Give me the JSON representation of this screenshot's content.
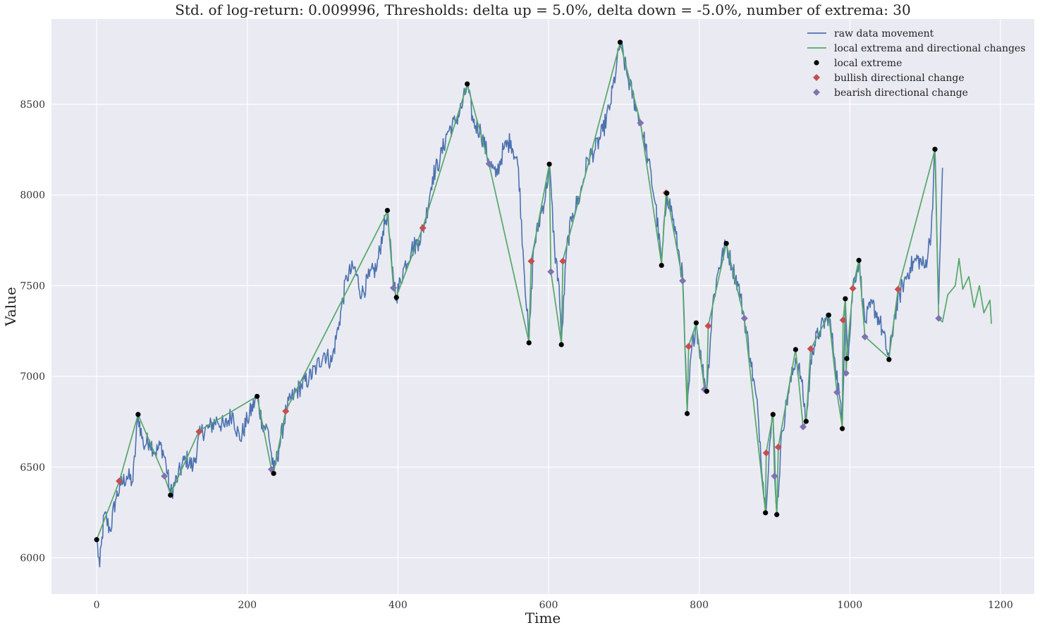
{
  "chart_data": {
    "type": "line",
    "title": "Std. of log-return: 0.009996, Thresholds: delta up = 5.0%, delta down = -5.0%, number of extrema: 30",
    "xlabel": "Time",
    "ylabel": "Value",
    "xlim": [
      -60,
      1245
    ],
    "ylim": [
      5800,
      8970
    ],
    "x_ticks": [
      0,
      200,
      400,
      600,
      800,
      1000,
      1200
    ],
    "y_ticks": [
      6000,
      6500,
      7000,
      7500,
      8000,
      8500
    ],
    "x_tick_labels": [
      "0",
      "200",
      "400",
      "600",
      "800",
      "1000",
      "1200"
    ],
    "y_tick_labels": [
      "6000",
      "6500",
      "7000",
      "7500",
      "8000",
      "8500"
    ],
    "grid": true,
    "background": "#eaeaf2",
    "legend_position": "top-right",
    "legend": [
      {
        "label": "raw data movement",
        "kind": "line",
        "color": "#4c72b0"
      },
      {
        "label": "local extrema and directional changes",
        "kind": "line",
        "color": "#55a868"
      },
      {
        "label": "local extreme",
        "kind": "dot",
        "color": "#000000"
      },
      {
        "label": "bullish directional change",
        "kind": "diamond",
        "color": "#c44e52"
      },
      {
        "label": "bearish directional change",
        "kind": "diamond",
        "color": "#8172b2"
      }
    ],
    "series": [
      {
        "name": "raw data movement",
        "color": "#4c72b0",
        "anchors": [
          [
            0,
            6100
          ],
          [
            4,
            5950
          ],
          [
            10,
            6240
          ],
          [
            18,
            6150
          ],
          [
            25,
            6320
          ],
          [
            32,
            6400
          ],
          [
            40,
            6450
          ],
          [
            48,
            6420
          ],
          [
            55,
            6790
          ],
          [
            62,
            6620
          ],
          [
            70,
            6650
          ],
          [
            78,
            6580
          ],
          [
            86,
            6620
          ],
          [
            92,
            6520
          ],
          [
            98,
            6350
          ],
          [
            108,
            6450
          ],
          [
            118,
            6550
          ],
          [
            128,
            6500
          ],
          [
            138,
            6690
          ],
          [
            150,
            6720
          ],
          [
            160,
            6760
          ],
          [
            170,
            6720
          ],
          [
            180,
            6800
          ],
          [
            190,
            6650
          ],
          [
            200,
            6760
          ],
          [
            213,
            6890
          ],
          [
            220,
            6740
          ],
          [
            228,
            6700
          ],
          [
            235,
            6470
          ],
          [
            242,
            6600
          ],
          [
            252,
            6820
          ],
          [
            262,
            6900
          ],
          [
            272,
            6950
          ],
          [
            282,
            6990
          ],
          [
            292,
            7050
          ],
          [
            302,
            7130
          ],
          [
            312,
            7080
          ],
          [
            322,
            7300
          ],
          [
            332,
            7550
          ],
          [
            342,
            7600
          ],
          [
            352,
            7450
          ],
          [
            362,
            7550
          ],
          [
            372,
            7600
          ],
          [
            380,
            7800
          ],
          [
            386,
            7900
          ],
          [
            392,
            7600
          ],
          [
            398,
            7440
          ],
          [
            408,
            7600
          ],
          [
            418,
            7700
          ],
          [
            428,
            7750
          ],
          [
            436,
            7850
          ],
          [
            446,
            8100
          ],
          [
            456,
            8200
          ],
          [
            466,
            8350
          ],
          [
            476,
            8400
          ],
          [
            486,
            8500
          ],
          [
            492,
            8610
          ],
          [
            500,
            8400
          ],
          [
            510,
            8350
          ],
          [
            520,
            8200
          ],
          [
            530,
            8100
          ],
          [
            540,
            8250
          ],
          [
            550,
            8300
          ],
          [
            560,
            8150
          ],
          [
            566,
            7700
          ],
          [
            574,
            7190
          ],
          [
            580,
            7700
          ],
          [
            590,
            7900
          ],
          [
            596,
            8000
          ],
          [
            601,
            8170
          ],
          [
            608,
            7700
          ],
          [
            614,
            7500
          ],
          [
            617,
            7180
          ],
          [
            624,
            7700
          ],
          [
            632,
            7900
          ],
          [
            642,
            8000
          ],
          [
            652,
            8200
          ],
          [
            662,
            8250
          ],
          [
            672,
            8350
          ],
          [
            682,
            8500
          ],
          [
            690,
            8700
          ],
          [
            695,
            8840
          ],
          [
            705,
            8650
          ],
          [
            715,
            8500
          ],
          [
            722,
            8400
          ],
          [
            732,
            8200
          ],
          [
            742,
            7950
          ],
          [
            750,
            7620
          ],
          [
            757,
            8010
          ],
          [
            764,
            7900
          ],
          [
            772,
            7700
          ],
          [
            778,
            7550
          ],
          [
            784,
            6800
          ],
          [
            790,
            7150
          ],
          [
            796,
            7290
          ],
          [
            804,
            7050
          ],
          [
            810,
            6920
          ],
          [
            818,
            7400
          ],
          [
            826,
            7600
          ],
          [
            836,
            7730
          ],
          [
            844,
            7600
          ],
          [
            852,
            7500
          ],
          [
            860,
            7320
          ],
          [
            868,
            7100
          ],
          [
            878,
            6800
          ],
          [
            888,
            6250
          ],
          [
            893,
            6600
          ],
          [
            898,
            6790
          ],
          [
            903,
            6240
          ],
          [
            910,
            6700
          ],
          [
            918,
            6900
          ],
          [
            928,
            7100
          ],
          [
            935,
            7000
          ],
          [
            942,
            6750
          ],
          [
            950,
            7150
          ],
          [
            960,
            7250
          ],
          [
            972,
            7340
          ],
          [
            980,
            7100
          ],
          [
            986,
            6900
          ],
          [
            990,
            6720
          ],
          [
            994,
            7430
          ],
          [
            998,
            7100
          ],
          [
            1004,
            7500
          ],
          [
            1012,
            7640
          ],
          [
            1020,
            7300
          ],
          [
            1030,
            7400
          ],
          [
            1040,
            7300
          ],
          [
            1052,
            7100
          ],
          [
            1060,
            7350
          ],
          [
            1070,
            7500
          ],
          [
            1080,
            7600
          ],
          [
            1090,
            7650
          ],
          [
            1100,
            7600
          ],
          [
            1108,
            7800
          ],
          [
            1113,
            8250
          ],
          [
            1118,
            7400
          ],
          [
            1123,
            8150
          ]
        ]
      },
      {
        "name": "local extrema and directional changes",
        "color": "#55a868",
        "anchors": [
          [
            0,
            6100
          ],
          [
            30,
            6420
          ],
          [
            55,
            6790
          ],
          [
            90,
            6450
          ],
          [
            98,
            6350
          ],
          [
            136,
            6700
          ],
          [
            213,
            6890
          ],
          [
            232,
            6490
          ],
          [
            235,
            6470
          ],
          [
            251,
            6810
          ],
          [
            386,
            7910
          ],
          [
            394,
            7490
          ],
          [
            398,
            7440
          ],
          [
            433,
            7820
          ],
          [
            492,
            8610
          ],
          [
            521,
            8170
          ],
          [
            574,
            7190
          ],
          [
            577,
            7640
          ],
          [
            601,
            8170
          ],
          [
            603,
            7580
          ],
          [
            617,
            7180
          ],
          [
            619,
            7640
          ],
          [
            695,
            8840
          ],
          [
            722,
            8400
          ],
          [
            750,
            7620
          ],
          [
            756,
            8010
          ],
          [
            757,
            8010
          ],
          [
            778,
            7530
          ],
          [
            784,
            6800
          ],
          [
            786,
            7170
          ],
          [
            796,
            7290
          ],
          [
            807,
            6930
          ],
          [
            810,
            6920
          ],
          [
            812,
            7280
          ],
          [
            836,
            7730
          ],
          [
            860,
            7320
          ],
          [
            888,
            6250
          ],
          [
            889,
            6580
          ],
          [
            898,
            6790
          ],
          [
            900,
            6450
          ],
          [
            903,
            6240
          ],
          [
            905,
            6610
          ],
          [
            928,
            7150
          ],
          [
            938,
            6720
          ],
          [
            942,
            6750
          ],
          [
            948,
            7150
          ],
          [
            972,
            7340
          ],
          [
            983,
            6910
          ],
          [
            990,
            6720
          ],
          [
            991,
            7310
          ],
          [
            994,
            7430
          ],
          [
            995,
            7020
          ],
          [
            996,
            7100
          ],
          [
            1004,
            7490
          ],
          [
            1012,
            7640
          ],
          [
            1020,
            7220
          ],
          [
            1052,
            7100
          ],
          [
            1064,
            7480
          ],
          [
            1113,
            8250
          ],
          [
            1118,
            7320
          ],
          [
            1123,
            7300
          ],
          [
            1130,
            7450
          ],
          [
            1140,
            7500
          ],
          [
            1145,
            7650
          ],
          [
            1150,
            7480
          ],
          [
            1158,
            7550
          ],
          [
            1165,
            7380
          ],
          [
            1172,
            7500
          ],
          [
            1178,
            7350
          ],
          [
            1186,
            7420
          ],
          [
            1188,
            7290
          ]
        ]
      }
    ],
    "local_extreme": [
      [
        0,
        6100
      ],
      [
        55,
        6790
      ],
      [
        98,
        6345
      ],
      [
        213,
        6890
      ],
      [
        235,
        6465
      ],
      [
        386,
        7915
      ],
      [
        398,
        7435
      ],
      [
        492,
        8612
      ],
      [
        574,
        7185
      ],
      [
        601,
        8170
      ],
      [
        617,
        7175
      ],
      [
        695,
        8842
      ],
      [
        750,
        7612
      ],
      [
        757,
        8010
      ],
      [
        784,
        6795
      ],
      [
        796,
        7295
      ],
      [
        810,
        6918
      ],
      [
        836,
        7733
      ],
      [
        888,
        6248
      ],
      [
        898,
        6790
      ],
      [
        903,
        6238
      ],
      [
        928,
        7148
      ],
      [
        942,
        6752
      ],
      [
        972,
        7338
      ],
      [
        990,
        6712
      ],
      [
        994,
        7428
      ],
      [
        996,
        7098
      ],
      [
        1012,
        7640
      ],
      [
        1052,
        7093
      ],
      [
        1113,
        8252
      ]
    ],
    "bullish_directional_change": [
      [
        30,
        6423
      ],
      [
        136,
        6695
      ],
      [
        251,
        6808
      ],
      [
        433,
        7818
      ],
      [
        577,
        7635
      ],
      [
        619,
        7635
      ],
      [
        756,
        8012
      ],
      [
        786,
        7165
      ],
      [
        812,
        7278
      ],
      [
        889,
        6578
      ],
      [
        905,
        6610
      ],
      [
        948,
        7152
      ],
      [
        991,
        7310
      ],
      [
        1004,
        7485
      ],
      [
        1064,
        7480
      ]
    ],
    "bearish_directional_change": [
      [
        90,
        6450
      ],
      [
        232,
        6487
      ],
      [
        394,
        7488
      ],
      [
        521,
        8172
      ],
      [
        603,
        7577
      ],
      [
        722,
        8397
      ],
      [
        778,
        7527
      ],
      [
        807,
        6928
      ],
      [
        860,
        7320
      ],
      [
        900,
        6450
      ],
      [
        938,
        6722
      ],
      [
        983,
        6912
      ],
      [
        995,
        7018
      ],
      [
        1020,
        7218
      ],
      [
        1118,
        7320
      ]
    ]
  }
}
